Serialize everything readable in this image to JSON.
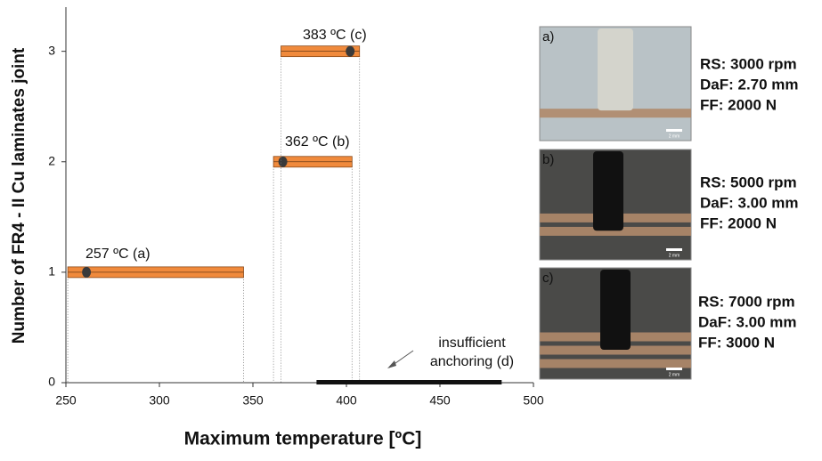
{
  "chart_data": {
    "type": "range",
    "xlabel": "Maximum temperature [ºC]",
    "ylabel": "Number of FR4 - II Cu laminates joint",
    "xlim": [
      250,
      500
    ],
    "xticks": [
      250,
      300,
      350,
      400,
      450,
      500
    ],
    "ylim": [
      0,
      3.4
    ],
    "yticks": [
      0,
      1,
      2,
      3
    ],
    "color": "#f08a3c",
    "dot_color": "#3a3a3a",
    "bottom_color": "#111111",
    "bars": [
      {
        "y": 1,
        "start": 251,
        "end": 345,
        "peak": 261,
        "label": "257 ºC (a)"
      },
      {
        "y": 2,
        "start": 361,
        "end": 403,
        "peak": 366,
        "label": "362 ºC (b)"
      },
      {
        "y": 3,
        "start": 365,
        "end": 407,
        "peak": 402,
        "label": "383 ºC (c)"
      }
    ],
    "insufficient": {
      "y": 0,
      "start": 384,
      "end": 483,
      "label": [
        "insufficient",
        "anchoring (d)"
      ]
    }
  },
  "panels": [
    {
      "tag": "a)",
      "scale": "2 mm",
      "lines": [
        "RS: 3000 rpm",
        "DaF: 2.70 mm",
        "FF: 2000 N"
      ]
    },
    {
      "tag": "b)",
      "scale": "2 mm",
      "lines": [
        "RS: 5000 rpm",
        "DaF: 3.00 mm",
        "FF: 2000 N"
      ]
    },
    {
      "tag": "c)",
      "scale": "2 mm",
      "lines": [
        "RS: 7000 rpm",
        "DaF: 3.00 mm",
        "FF: 3000 N"
      ]
    }
  ]
}
